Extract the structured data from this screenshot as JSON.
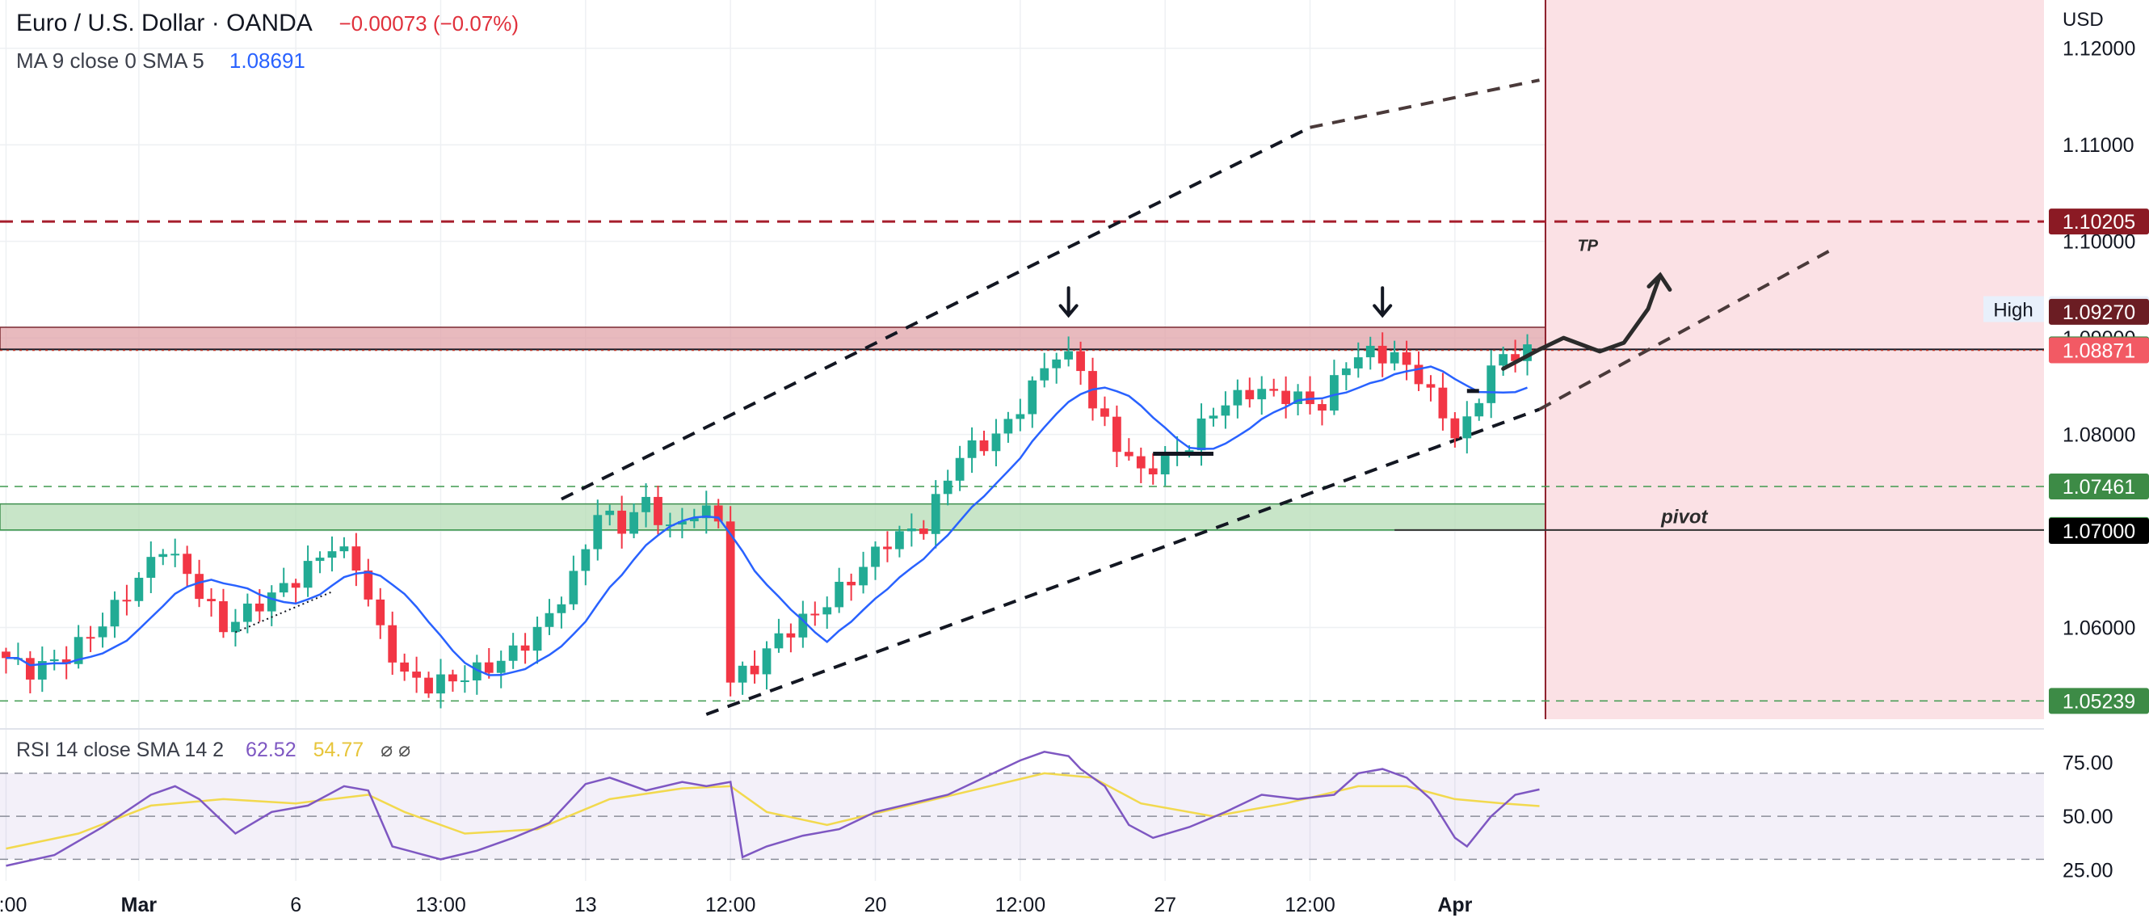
{
  "header": {
    "symbol_title": "Euro / U.S. Dollar · OANDA",
    "change": "−0.00073 (−0.07%)",
    "ma_label": "MA 9 close 0 SMA 5",
    "ma_value": "1.08691"
  },
  "rsi_header": {
    "label": "RSI 14 close SMA 14 2",
    "rsi_value": "62.52",
    "sma_value": "54.77",
    "icons": "⌀ ⌀"
  },
  "colors": {
    "up": "#22ab94",
    "down": "#f23645",
    "ma": "#2962ff",
    "rsi": "#7e57c2",
    "rsi_sma": "#f2d94e",
    "resistance_zone": "#e0a3a8",
    "support_zone": "#b5dcb5",
    "forecast_zone": "#fbe1e5"
  },
  "chart_data": {
    "type": "candlestick",
    "title": "Euro / U.S. Dollar · OANDA",
    "currency": "USD",
    "y_axis_ticks": [
      "1.12000",
      "1.11000",
      "1.10000",
      "1.09000",
      "1.08000",
      "1.07000",
      "1.06000"
    ],
    "ylim": [
      1.0505,
      1.125
    ],
    "x_axis_ticks": [
      {
        "label": ":00",
        "index": 0
      },
      {
        "label": "Mar",
        "index": 11
      },
      {
        "label": "6",
        "index": 24
      },
      {
        "label": "13:00",
        "index": 36
      },
      {
        "label": "13",
        "index": 48
      },
      {
        "label": "12:00",
        "index": 60
      },
      {
        "label": "20",
        "index": 72
      },
      {
        "label": "12:00",
        "index": 84
      },
      {
        "label": "27",
        "index": 96
      },
      {
        "label": "12:00",
        "index": 108
      },
      {
        "label": "Apr",
        "index": 120
      }
    ],
    "close_path": [
      [
        0,
        1.0575
      ],
      [
        3,
        1.0555
      ],
      [
        6,
        1.057
      ],
      [
        9,
        1.0605
      ],
      [
        12,
        1.065
      ],
      [
        14,
        1.0685
      ],
      [
        16,
        1.0655
      ],
      [
        19,
        1.06
      ],
      [
        22,
        1.0625
      ],
      [
        25,
        1.065
      ],
      [
        28,
        1.0685
      ],
      [
        30,
        1.0665
      ],
      [
        32,
        1.0595
      ],
      [
        34,
        1.055
      ],
      [
        36,
        1.054
      ],
      [
        39,
        1.055
      ],
      [
        42,
        1.0565
      ],
      [
        45,
        1.0595
      ],
      [
        48,
        1.065
      ],
      [
        50,
        1.072
      ],
      [
        52,
        1.0705
      ],
      [
        54,
        1.073
      ],
      [
        56,
        1.07
      ],
      [
        58,
        1.072
      ],
      [
        60,
        1.0715
      ],
      [
        61,
        1.0545
      ],
      [
        63,
        1.056
      ],
      [
        65,
        1.059
      ],
      [
        68,
        1.0615
      ],
      [
        71,
        1.065
      ],
      [
        74,
        1.069
      ],
      [
        77,
        1.0705
      ],
      [
        80,
        1.078
      ],
      [
        82,
        1.079
      ],
      [
        84,
        1.081
      ],
      [
        86,
        1.085
      ],
      [
        88,
        1.0885
      ],
      [
        90,
        1.087
      ],
      [
        91,
        1.083
      ],
      [
        93,
        1.079
      ],
      [
        95,
        1.076
      ],
      [
        97,
        1.0775
      ],
      [
        99,
        1.079
      ],
      [
        101,
        1.0825
      ],
      [
        104,
        1.0845
      ],
      [
        107,
        1.084
      ],
      [
        110,
        1.083
      ],
      [
        112,
        1.0875
      ],
      [
        114,
        1.0885
      ],
      [
        116,
        1.088
      ],
      [
        118,
        1.086
      ],
      [
        120,
        1.082
      ],
      [
        121,
        1.08
      ],
      [
        122,
        1.081
      ],
      [
        124,
        1.087
      ],
      [
        126,
        1.0885
      ],
      [
        127,
        1.0887
      ]
    ],
    "series": [
      {
        "name": "MA 9 close 0 SMA 5",
        "last_value": 1.08691
      },
      {
        "name": "RSI 14",
        "last_value": 62.52
      },
      {
        "name": "RSI SMA 14",
        "last_value": 54.77
      }
    ],
    "price_labels": [
      {
        "value": "1.10205",
        "level": 1.10205,
        "style": "dark-red"
      },
      {
        "value": "1.09298",
        "level": 1.09298,
        "style": "high",
        "tag": "High"
      },
      {
        "value": "1.09270",
        "level": 1.0927,
        "style": "maroon"
      },
      {
        "value": "1.08881",
        "level": 1.08881,
        "style": "green"
      },
      {
        "value": "1.08871",
        "level": 1.08871,
        "style": "red"
      },
      {
        "value": "1.07461",
        "level": 1.07461,
        "style": "green"
      },
      {
        "value": "1.07010",
        "level": 1.0701,
        "style": "green"
      },
      {
        "value": "1.07000",
        "level": 1.07,
        "style": "black"
      },
      {
        "value": "1.05239",
        "level": 1.05239,
        "style": "green"
      }
    ],
    "horizontal_levels": [
      {
        "level": 1.10205,
        "style": "dashed-dark-red"
      },
      {
        "level": 1.08881,
        "style": "solid-black"
      },
      {
        "level": 1.08871,
        "style": "dotted-red"
      },
      {
        "level": 1.07461,
        "style": "dashed-green"
      },
      {
        "level": 1.0701,
        "style": "solid-green"
      },
      {
        "level": 1.05239,
        "style": "dashed-green"
      }
    ],
    "zones": [
      {
        "type": "resistance",
        "from": 1.0888,
        "to": 1.0911
      },
      {
        "type": "support",
        "from": 1.0701,
        "to": 1.0728
      },
      {
        "type": "forecast",
        "from_index": 127
      }
    ],
    "annotations": [
      {
        "text": "TP",
        "index": 131,
        "level": 1.099
      },
      {
        "text": "pivot",
        "index": 139,
        "level": 1.0708
      }
    ],
    "rsi": {
      "ticks": [
        "75.00",
        "50.00",
        "25.00"
      ],
      "ylim": [
        20,
        82
      ],
      "bands": [
        30,
        50,
        70
      ],
      "rsi_path": [
        [
          0,
          27
        ],
        [
          4,
          32
        ],
        [
          8,
          45
        ],
        [
          12,
          60
        ],
        [
          14,
          64
        ],
        [
          16,
          58
        ],
        [
          19,
          42
        ],
        [
          22,
          52
        ],
        [
          25,
          55
        ],
        [
          28,
          64
        ],
        [
          30,
          62
        ],
        [
          32,
          36
        ],
        [
          34,
          33
        ],
        [
          36,
          30
        ],
        [
          39,
          34
        ],
        [
          42,
          40
        ],
        [
          45,
          47
        ],
        [
          48,
          65
        ],
        [
          50,
          68
        ],
        [
          53,
          62
        ],
        [
          56,
          66
        ],
        [
          58,
          64
        ],
        [
          60,
          66
        ],
        [
          61,
          31
        ],
        [
          63,
          36
        ],
        [
          66,
          41
        ],
        [
          69,
          44
        ],
        [
          72,
          52
        ],
        [
          75,
          56
        ],
        [
          78,
          60
        ],
        [
          81,
          68
        ],
        [
          84,
          76
        ],
        [
          86,
          80
        ],
        [
          88,
          78
        ],
        [
          89,
          72
        ],
        [
          91,
          64
        ],
        [
          93,
          46
        ],
        [
          95,
          40
        ],
        [
          98,
          45
        ],
        [
          101,
          52
        ],
        [
          104,
          60
        ],
        [
          107,
          58
        ],
        [
          110,
          60
        ],
        [
          112,
          70
        ],
        [
          114,
          72
        ],
        [
          116,
          68
        ],
        [
          118,
          58
        ],
        [
          120,
          40
        ],
        [
          121,
          36
        ],
        [
          123,
          50
        ],
        [
          125,
          60
        ],
        [
          127,
          62.5
        ]
      ],
      "sma_path": [
        [
          0,
          35
        ],
        [
          6,
          42
        ],
        [
          12,
          55
        ],
        [
          18,
          58
        ],
        [
          24,
          56
        ],
        [
          30,
          60
        ],
        [
          33,
          52
        ],
        [
          38,
          42
        ],
        [
          44,
          44
        ],
        [
          50,
          58
        ],
        [
          56,
          63
        ],
        [
          60,
          64
        ],
        [
          63,
          52
        ],
        [
          68,
          46
        ],
        [
          74,
          54
        ],
        [
          80,
          62
        ],
        [
          86,
          70
        ],
        [
          90,
          68
        ],
        [
          94,
          56
        ],
        [
          100,
          50
        ],
        [
          106,
          56
        ],
        [
          112,
          64
        ],
        [
          116,
          64
        ],
        [
          120,
          58
        ],
        [
          124,
          56
        ],
        [
          127,
          54.77
        ]
      ]
    }
  }
}
